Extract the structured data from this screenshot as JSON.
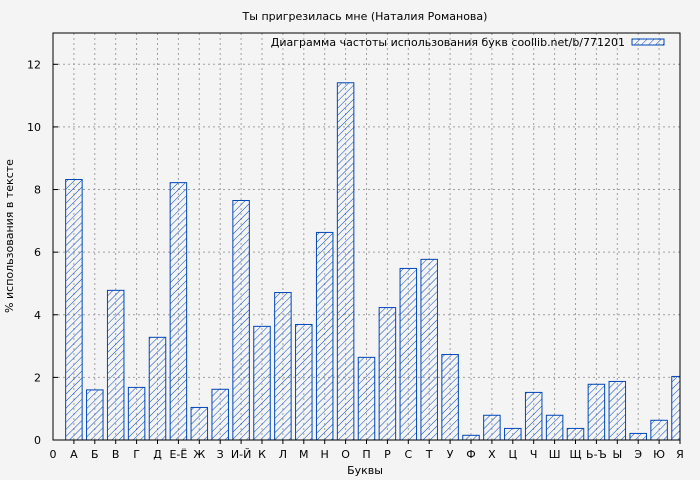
{
  "chart_data": {
    "type": "bar",
    "title": "Ты пригрезилась мне (Наталия Романова)",
    "xlabel": "Буквы",
    "ylabel": "% использования в тексте",
    "legend": {
      "label": "Диаграмма частоты использования букв coollib.net/b/771201",
      "placement": "top-right"
    },
    "x_origin_label": "0",
    "categories": [
      "А",
      "Б",
      "В",
      "Г",
      "Д",
      "Е-Ё",
      "Ж",
      "З",
      "И-Й",
      "К",
      "Л",
      "М",
      "Н",
      "О",
      "П",
      "Р",
      "С",
      "Т",
      "У",
      "Ф",
      "Х",
      "Ц",
      "Ч",
      "Ш",
      "Щ",
      "Ь-Ъ",
      "Ы",
      "Э",
      "Ю",
      "Я"
    ],
    "values": [
      8.32,
      1.6,
      4.78,
      1.68,
      3.28,
      8.22,
      1.04,
      1.62,
      7.65,
      3.63,
      4.71,
      3.69,
      6.63,
      11.41,
      2.64,
      4.23,
      5.48,
      5.77,
      2.73,
      0.15,
      0.79,
      0.37,
      1.52,
      0.79,
      0.37,
      1.78,
      1.87,
      0.21,
      0.63,
      2.03
    ],
    "ylim": [
      0,
      13
    ],
    "yticks": [
      0,
      2,
      4,
      6,
      8,
      10,
      12
    ],
    "grid": true,
    "colors": {
      "bar": "#0047bb",
      "grid": "#a0a0a0",
      "background": "#f4f4f4"
    }
  }
}
